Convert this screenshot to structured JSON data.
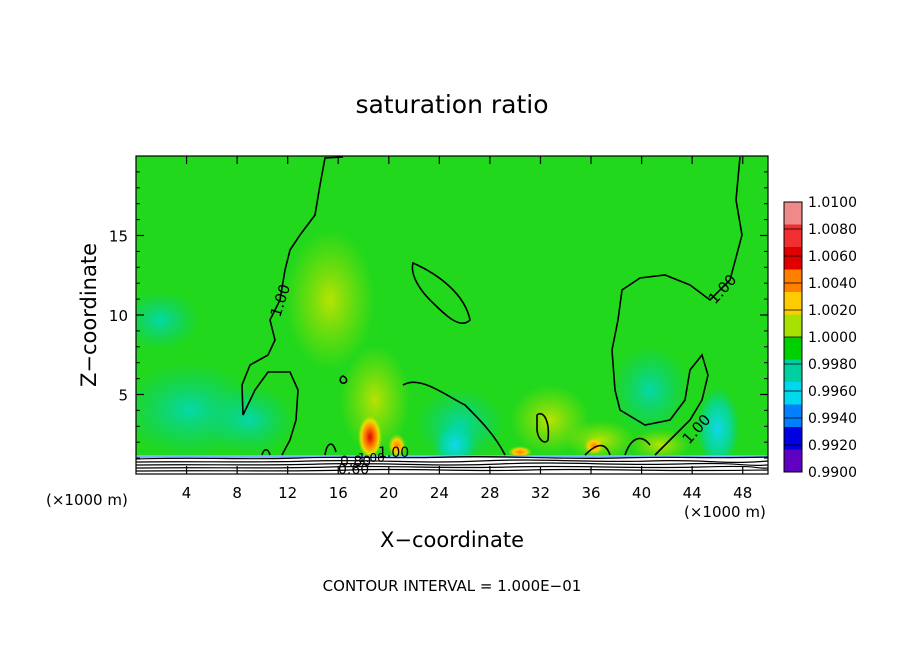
{
  "chart_data": {
    "type": "heatmap",
    "title": "saturation ratio",
    "xlabel": "X−coordinate",
    "ylabel": "Z−coordinate",
    "x_unit_left": "(×1000 m)",
    "x_unit_right": "(×1000 m)",
    "xlim": [
      0,
      50
    ],
    "ylim": [
      0,
      20
    ],
    "x_ticks": [
      4,
      8,
      12,
      16,
      20,
      24,
      28,
      32,
      36,
      40,
      44,
      48
    ],
    "y_ticks": [
      5,
      10,
      15
    ],
    "colorbar": {
      "labels": [
        "1.0100",
        "1.0080",
        "1.0060",
        "1.0040",
        "1.0020",
        "1.0000",
        "0.9980",
        "0.9960",
        "0.9940",
        "0.9920",
        "0.9900"
      ],
      "colors": [
        "#f08a8a",
        "#f03030",
        "#e00000",
        "#ff7f00",
        "#ffcc00",
        "#a8e000",
        "#00d000",
        "#00d0a0",
        "#00d8f0",
        "#0080ff",
        "#0000e0",
        "#6000c0"
      ]
    },
    "background_color": "#22d81c",
    "contour_labels": [
      "1.00",
      "1.00",
      "1.00",
      "1.00",
      "0.80",
      "1.00",
      "0.60"
    ],
    "contour_interval_label": "CONTOUR INTERVAL =  1.000E−01"
  }
}
